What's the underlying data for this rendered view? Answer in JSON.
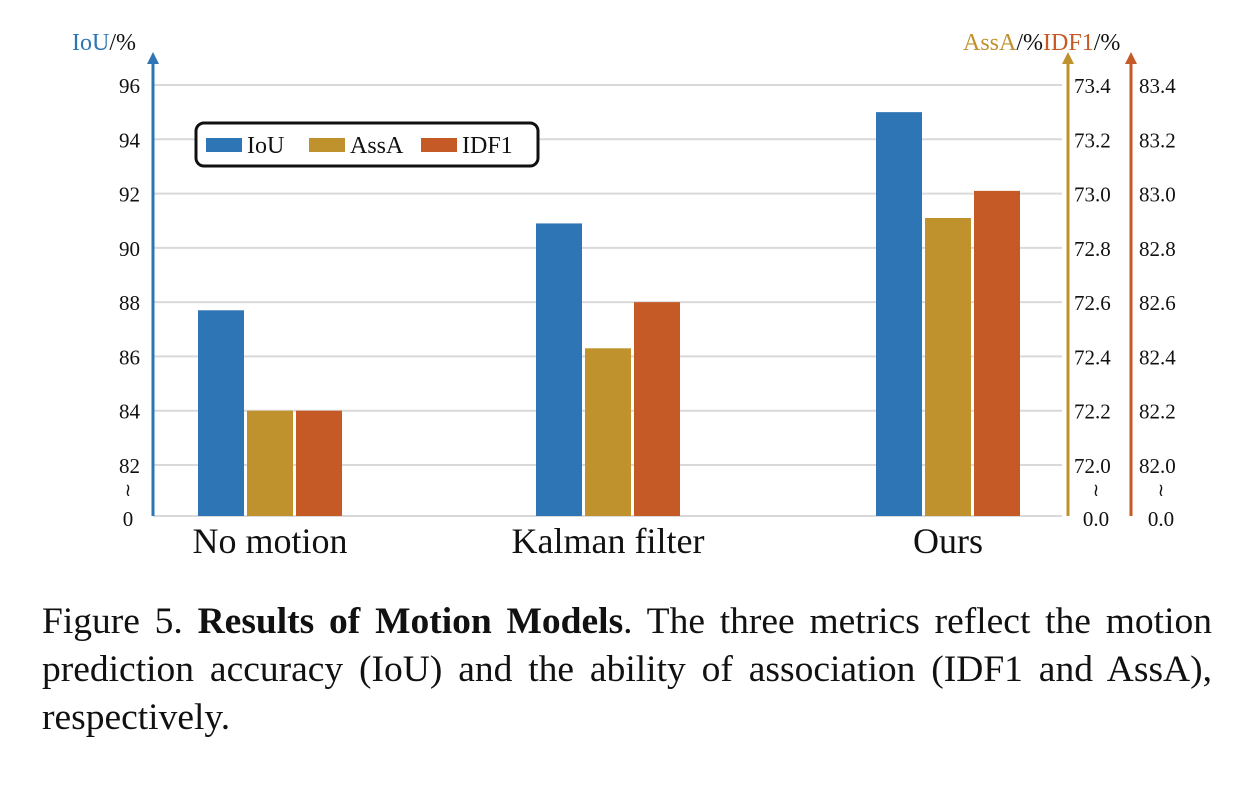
{
  "chart_data": {
    "type": "bar",
    "categories": [
      "No motion",
      "Kalman filter",
      "Ours"
    ],
    "series": [
      {
        "name": "IoU",
        "values": [
          87.7,
          90.9,
          95.0
        ],
        "axis": "left",
        "color": "#2e75b6"
      },
      {
        "name": "AssA",
        "values": [
          72.2,
          72.43,
          72.91
        ],
        "axis": "right1",
        "color": "#c0922d"
      },
      {
        "name": "IDF1",
        "values": [
          82.2,
          82.6,
          83.01
        ],
        "axis": "right2",
        "color": "#c55a27"
      }
    ],
    "axes": {
      "left": {
        "label_metric": "IoU",
        "label_unit": "/%",
        "color": "#2e75b6",
        "ticks": [
          "96",
          "94",
          "92",
          "90",
          "88",
          "86",
          "84",
          "82"
        ],
        "break_label": "0",
        "tick_values": [
          96,
          94,
          92,
          90,
          88,
          86,
          84,
          82
        ],
        "ylim": [
          82,
          96
        ]
      },
      "right1": {
        "label_metric": "AssA",
        "label_unit": "/%",
        "color": "#c0922d",
        "ticks": [
          "73.4",
          "73.2",
          "73.0",
          "72.8",
          "72.6",
          "72.4",
          "72.2",
          "72.0"
        ],
        "break_label": "0.0",
        "tick_values": [
          73.4,
          73.2,
          73.0,
          72.8,
          72.6,
          72.4,
          72.2,
          72.0
        ],
        "ylim": [
          72.0,
          73.4
        ]
      },
      "right2": {
        "label_metric": "IDF1",
        "label_unit": "/%",
        "color": "#c55a27",
        "ticks": [
          "83.4",
          "83.2",
          "83.0",
          "82.8",
          "82.6",
          "82.4",
          "82.2",
          "82.0"
        ],
        "break_label": "0.0",
        "tick_values": [
          83.4,
          83.2,
          83.0,
          82.8,
          82.6,
          82.4,
          82.2,
          82.0
        ],
        "ylim": [
          82.0,
          83.4
        ]
      }
    },
    "break_symbol": "≀",
    "grid": true,
    "legend_placement": "top-left",
    "title": "",
    "xlabel": ""
  },
  "caption": {
    "figure_label": "Figure 5.",
    "title": "Results of Motion Models",
    "after_title": ".",
    "text": "The three metrics reflect the motion prediction accuracy (IoU) and the ability of association (IDF1 and AssA), respectively."
  }
}
